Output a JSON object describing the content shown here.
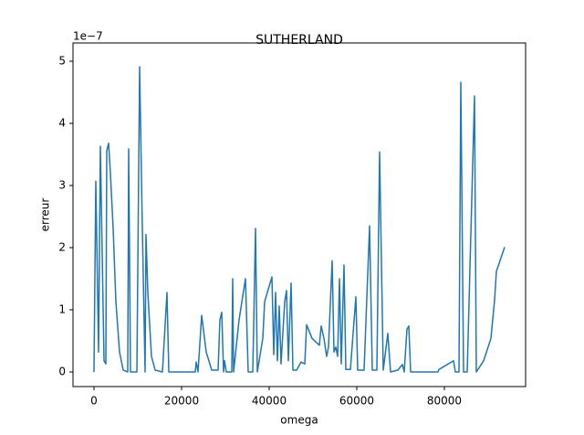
{
  "chart_data": {
    "type": "line",
    "title": "SUTHERLAND",
    "xlabel": "omega",
    "ylabel": "erreur",
    "y_offset_label": "1e−7",
    "color": "#1f77b4",
    "grid": false,
    "xlim": [
      -4792,
      98542
    ],
    "ylim": [
      -0.235,
      5.294
    ],
    "xticks": [
      0,
      20000,
      40000,
      60000,
      80000
    ],
    "yticks": [
      0,
      1,
      2,
      3,
      4,
      5
    ],
    "x": [
      0,
      417,
      1042,
      1458,
      2292,
      2708,
      2917,
      3333,
      3750,
      4375,
      5000,
      5833,
      6667,
      7708,
      7917,
      8333,
      9792,
      10417,
      11042,
      11667,
      11875,
      12292,
      13125,
      13958,
      15625,
      16667,
      17083,
      23125,
      23333,
      23750,
      24583,
      25625,
      26875,
      28333,
      28750,
      29167,
      29583,
      29792,
      30208,
      31458,
      31667,
      31875,
      33125,
      34583,
      35208,
      36250,
      36458,
      36875,
      37292,
      38542,
      38958,
      40208,
      40625,
      41042,
      41458,
      41875,
      42292,
      42708,
      43542,
      43958,
      44375,
      45000,
      45417,
      46250,
      47292,
      48125,
      48542,
      49792,
      51458,
      51875,
      52500,
      53125,
      53542,
      54375,
      54792,
      55208,
      55625,
      56042,
      56458,
      57083,
      57500,
      58542,
      59792,
      60208,
      61667,
      62917,
      63542,
      64583,
      65208,
      66042,
      67083,
      67708,
      69375,
      70417,
      70833,
      71458,
      71875,
      72292,
      78542,
      78750,
      82083,
      82500,
      83333,
      83750,
      84375,
      85208,
      86875,
      87292,
      88958,
      90625,
      91458,
      91875,
      92708,
      93750
    ],
    "y": [
      0,
      3.07,
      0.32,
      3.63,
      0.18,
      0.13,
      3.56,
      3.68,
      3.19,
      2.31,
      1.13,
      0.32,
      0.03,
      0,
      3.59,
      0,
      0,
      4.91,
      2.31,
      0,
      2.21,
      1.28,
      0.25,
      0.03,
      0,
      1.28,
      0,
      0,
      0.16,
      0,
      0.91,
      0.32,
      0.03,
      0.03,
      0.84,
      0.96,
      0,
      0.18,
      0,
      0,
      1.5,
      0,
      0.84,
      1.5,
      0,
      0,
      0.74,
      2.31,
      0,
      0.54,
      1.13,
      1.43,
      1.53,
      0.28,
      1.28,
      0.18,
      1.06,
      0.13,
      1.13,
      1.31,
      0.18,
      1.43,
      0.03,
      0.03,
      0.16,
      0.13,
      0.76,
      0.54,
      0.43,
      0.74,
      0.54,
      0.25,
      0.4,
      1.79,
      0.32,
      0.4,
      0.25,
      1.5,
      0.13,
      1.72,
      0.04,
      0.04,
      1.21,
      0.03,
      0.03,
      2.35,
      0.03,
      0.03,
      3.54,
      0.03,
      0.62,
      0,
      0.03,
      0.12,
      0,
      0.69,
      0.74,
      0,
      0,
      0.04,
      0.18,
      0,
      0,
      4.66,
      0,
      0,
      4.44,
      0,
      0.18,
      0.54,
      1.16,
      1.62,
      1.79,
      2.01
    ]
  }
}
